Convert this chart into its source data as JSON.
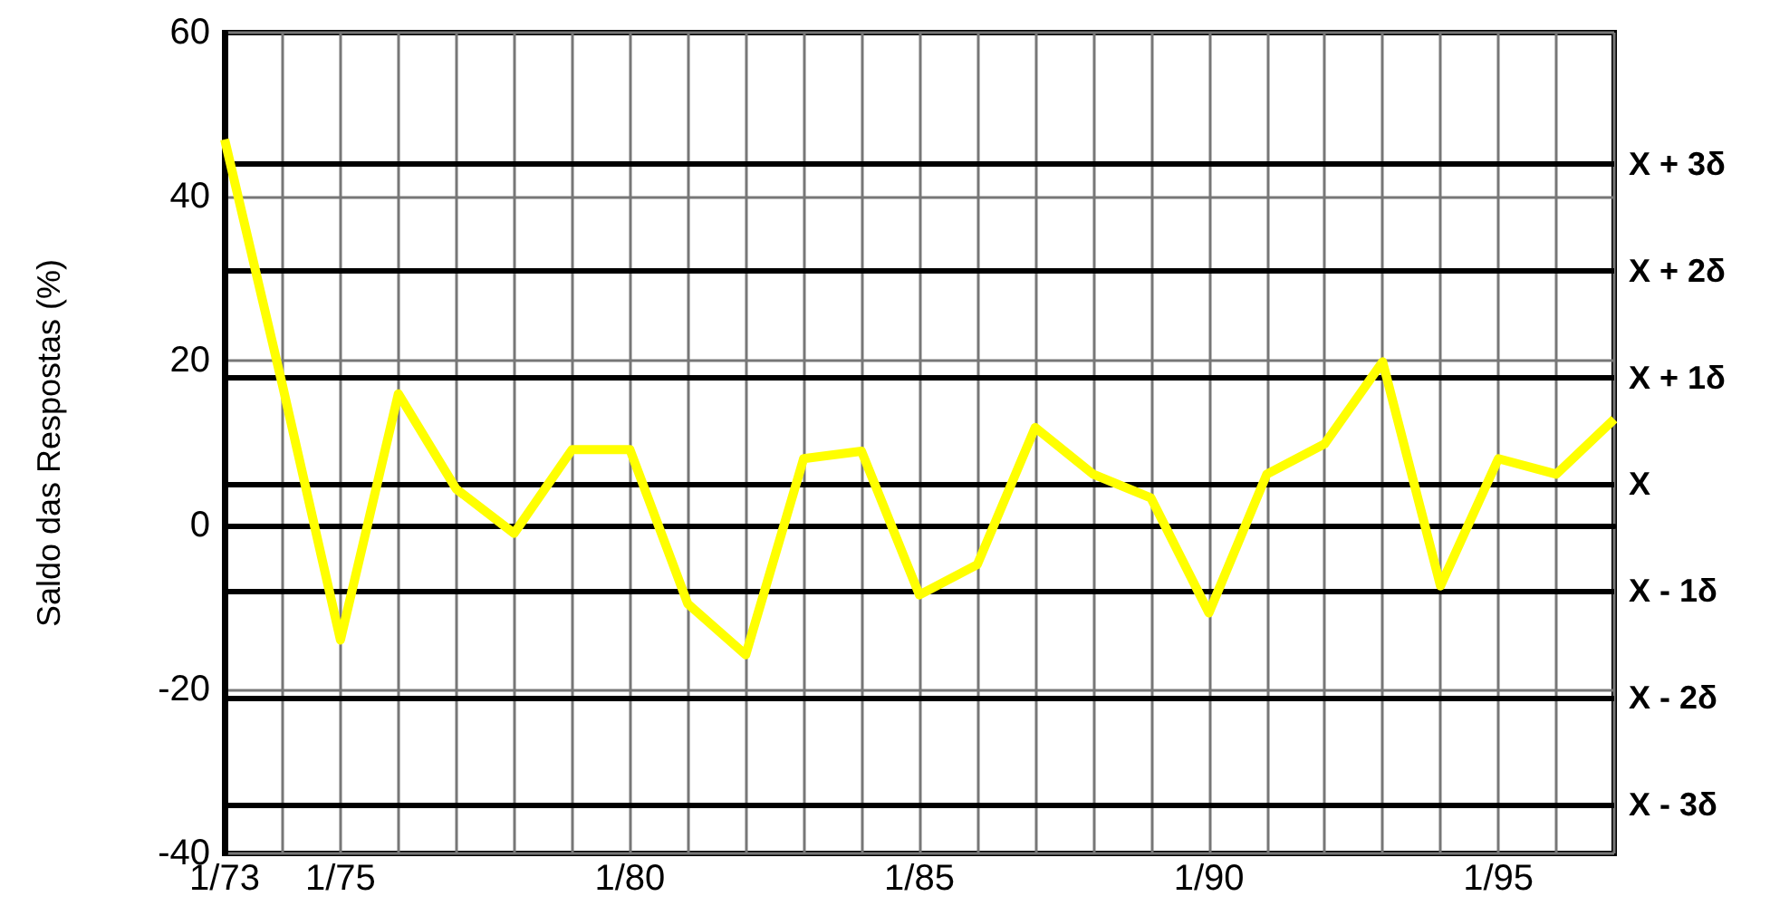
{
  "chart_data": {
    "type": "line",
    "ylabel": "Saldo das Respostas (%)",
    "categories": [
      "1/73",
      null,
      "1/75",
      null,
      null,
      null,
      null,
      "1/80",
      null,
      null,
      null,
      null,
      "1/85",
      null,
      null,
      null,
      null,
      "1/90",
      null,
      null,
      null,
      null,
      "1/95",
      null,
      null
    ],
    "series": [
      {
        "color": "#ffff00",
        "values": [
          47,
          17,
          -14,
          16,
          4.4,
          -1,
          9.2,
          9.2,
          -9.6,
          -15.8,
          8.1,
          9,
          -8.5,
          -4.8,
          11.9,
          6.2,
          3.3,
          -10.7,
          6.2,
          9.9,
          19.9,
          -7.4,
          8.1,
          6.2,
          12.9
        ]
      }
    ],
    "ylim": [
      -40,
      60
    ],
    "yticks": [
      -40,
      -20,
      0,
      20,
      40,
      60
    ],
    "grid": true,
    "marker": "none",
    "line_style": "solid",
    "ref_lines": [
      {
        "axis": "y",
        "value": 44,
        "label": "X + 3δ",
        "color": "#000000"
      },
      {
        "axis": "y",
        "value": 31,
        "label": "X + 2δ",
        "color": "#000000"
      },
      {
        "axis": "y",
        "value": 18,
        "label": "X + 1δ",
        "color": "#000000"
      },
      {
        "axis": "y",
        "value": 5,
        "label": "X",
        "color": "#000000"
      },
      {
        "axis": "y",
        "value": 0,
        "label": null,
        "color": "#000000"
      },
      {
        "axis": "y",
        "value": -8,
        "label": "X - 1δ",
        "color": "#000000"
      },
      {
        "axis": "y",
        "value": -21,
        "label": "X - 2δ",
        "color": "#000000"
      },
      {
        "axis": "y",
        "value": -34,
        "label": "X - 3δ",
        "color": "#000000"
      }
    ]
  }
}
